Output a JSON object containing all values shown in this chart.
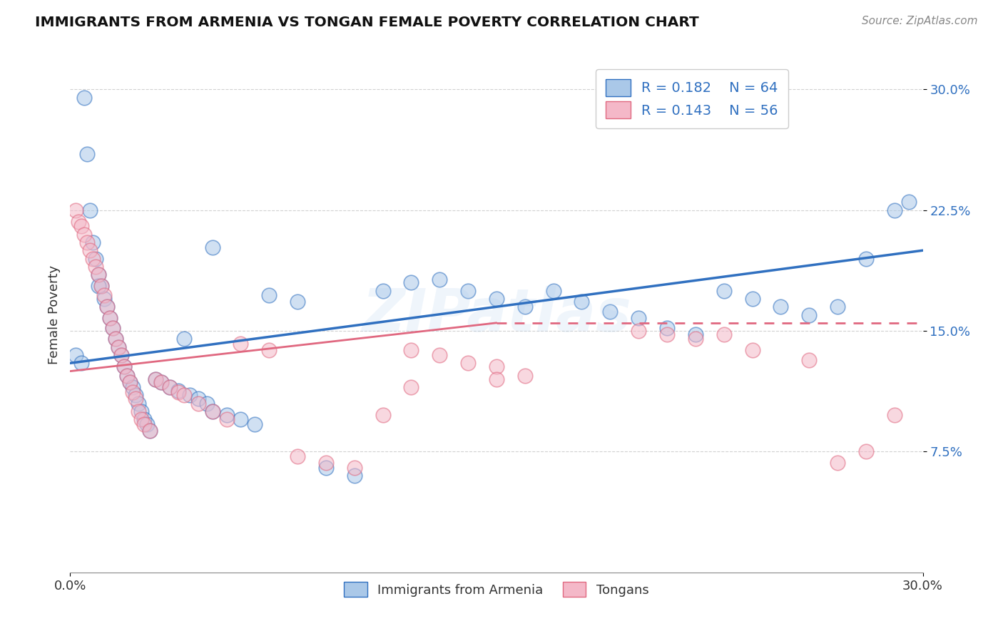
{
  "title": "IMMIGRANTS FROM ARMENIA VS TONGAN FEMALE POVERTY CORRELATION CHART",
  "source": "Source: ZipAtlas.com",
  "ylabel": "Female Poverty",
  "xlim": [
    0.0,
    0.3
  ],
  "ylim": [
    0.0,
    0.32
  ],
  "yticks": [
    0.075,
    0.15,
    0.225,
    0.3
  ],
  "ytick_labels": [
    "7.5%",
    "15.0%",
    "22.5%",
    "30.0%"
  ],
  "xticks": [
    0.0,
    0.3
  ],
  "xtick_labels": [
    "0.0%",
    "30.0%"
  ],
  "color_blue": "#aac8e8",
  "color_pink": "#f4b8c8",
  "line_blue": "#3070c0",
  "line_pink": "#e06880",
  "watermark": "ZIPatlas",
  "background_color": "#ffffff",
  "grid_color": "#cccccc",
  "armenia_x": [
    0.002,
    0.004,
    0.005,
    0.006,
    0.007,
    0.008,
    0.009,
    0.01,
    0.011,
    0.012,
    0.013,
    0.014,
    0.015,
    0.016,
    0.017,
    0.018,
    0.019,
    0.02,
    0.021,
    0.022,
    0.023,
    0.024,
    0.025,
    0.026,
    0.027,
    0.028,
    0.03,
    0.032,
    0.035,
    0.038,
    0.04,
    0.042,
    0.045,
    0.048,
    0.05,
    0.055,
    0.06,
    0.065,
    0.07,
    0.08,
    0.09,
    0.1,
    0.11,
    0.12,
    0.13,
    0.14,
    0.15,
    0.16,
    0.17,
    0.18,
    0.19,
    0.2,
    0.21,
    0.22,
    0.23,
    0.24,
    0.25,
    0.26,
    0.27,
    0.28,
    0.29,
    0.295,
    0.01,
    0.05
  ],
  "armenia_y": [
    0.135,
    0.13,
    0.295,
    0.26,
    0.225,
    0.205,
    0.195,
    0.185,
    0.178,
    0.17,
    0.165,
    0.158,
    0.152,
    0.145,
    0.14,
    0.135,
    0.128,
    0.122,
    0.118,
    0.115,
    0.11,
    0.105,
    0.1,
    0.095,
    0.092,
    0.088,
    0.12,
    0.118,
    0.115,
    0.113,
    0.145,
    0.11,
    0.108,
    0.105,
    0.1,
    0.098,
    0.095,
    0.092,
    0.172,
    0.168,
    0.065,
    0.06,
    0.175,
    0.18,
    0.182,
    0.175,
    0.17,
    0.165,
    0.175,
    0.168,
    0.162,
    0.158,
    0.152,
    0.148,
    0.175,
    0.17,
    0.165,
    0.16,
    0.165,
    0.195,
    0.225,
    0.23,
    0.178,
    0.202
  ],
  "tongan_x": [
    0.002,
    0.003,
    0.004,
    0.005,
    0.006,
    0.007,
    0.008,
    0.009,
    0.01,
    0.011,
    0.012,
    0.013,
    0.014,
    0.015,
    0.016,
    0.017,
    0.018,
    0.019,
    0.02,
    0.021,
    0.022,
    0.023,
    0.024,
    0.025,
    0.026,
    0.028,
    0.03,
    0.032,
    0.035,
    0.038,
    0.04,
    0.045,
    0.05,
    0.055,
    0.06,
    0.07,
    0.08,
    0.09,
    0.1,
    0.11,
    0.12,
    0.13,
    0.14,
    0.15,
    0.16,
    0.2,
    0.21,
    0.22,
    0.23,
    0.24,
    0.26,
    0.27,
    0.28,
    0.29,
    0.12,
    0.15
  ],
  "tongan_y": [
    0.225,
    0.218,
    0.215,
    0.21,
    0.205,
    0.2,
    0.195,
    0.19,
    0.185,
    0.178,
    0.172,
    0.165,
    0.158,
    0.152,
    0.145,
    0.14,
    0.135,
    0.128,
    0.122,
    0.118,
    0.112,
    0.108,
    0.1,
    0.095,
    0.092,
    0.088,
    0.12,
    0.118,
    0.115,
    0.112,
    0.11,
    0.105,
    0.1,
    0.095,
    0.142,
    0.138,
    0.072,
    0.068,
    0.065,
    0.098,
    0.138,
    0.135,
    0.13,
    0.128,
    0.122,
    0.15,
    0.148,
    0.145,
    0.148,
    0.138,
    0.132,
    0.068,
    0.075,
    0.098,
    0.115,
    0.12
  ],
  "arm_line_x0": 0.0,
  "arm_line_x1": 0.3,
  "arm_line_y0": 0.13,
  "arm_line_y1": 0.2,
  "ton_line_x0": 0.0,
  "ton_line_x1": 0.15,
  "ton_line_x1_dash": 0.3,
  "ton_line_y0": 0.125,
  "ton_line_y1": 0.155,
  "ton_line_y1_dash": 0.155
}
